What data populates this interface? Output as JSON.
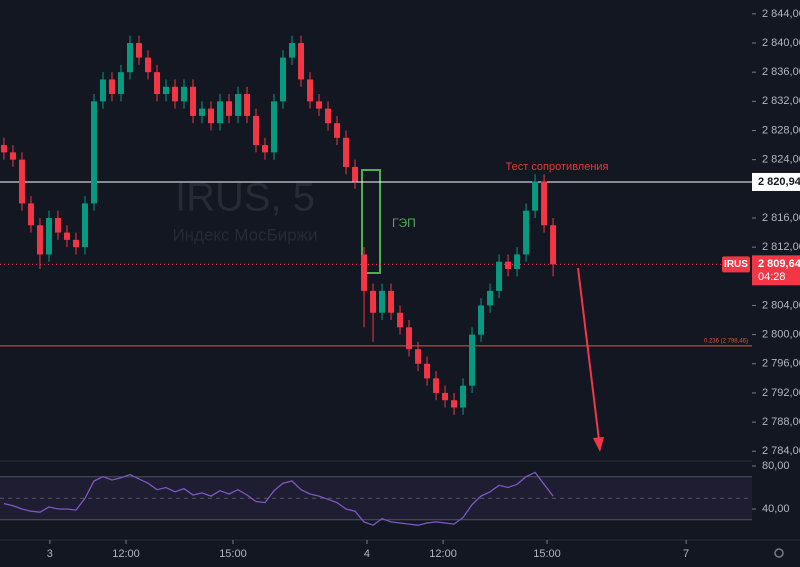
{
  "chart_data": [
    {
      "type": "candlestick",
      "symbol_watermark": "IRUS, 5",
      "symbol_name": "Индекс МосБиржи",
      "symbol": "IRUS",
      "annotations": [
        "ГЭП",
        "Тест сопротивления"
      ],
      "up_color": "#089981",
      "down_color": "#f23645",
      "open": [
        2826,
        2825,
        2824,
        2818,
        2815,
        2811,
        2816,
        2814,
        2813,
        2812,
        2818,
        2832,
        2835,
        2833,
        2836,
        2840,
        2838,
        2836,
        2833,
        2834,
        2832,
        2834,
        2830,
        2831,
        2829,
        2832,
        2830,
        2833,
        2830,
        2826,
        2825,
        2832,
        2838,
        2840,
        2835,
        2832,
        2831,
        2829,
        2827,
        2823,
        2811,
        2806,
        2803,
        2806,
        2803,
        2801,
        2798,
        2796,
        2794,
        2792,
        2791,
        2790,
        2793,
        2800,
        2804,
        2806,
        2810,
        2809,
        2811,
        2817,
        2821,
        2815
      ],
      "high": [
        2827,
        2826,
        2825,
        2819,
        2816,
        2817,
        2817,
        2815,
        2814,
        2819,
        2833,
        2836,
        2836,
        2837,
        2841,
        2841,
        2839,
        2837,
        2835,
        2835,
        2835,
        2835,
        2832,
        2832,
        2833,
        2833,
        2834,
        2834,
        2831,
        2827,
        2833,
        2839,
        2841,
        2841,
        2836,
        2833,
        2832,
        2830,
        2828,
        2824,
        2812,
        2807,
        2807,
        2807,
        2804,
        2802,
        2799,
        2797,
        2795,
        2793,
        2792,
        2794,
        2801,
        2805,
        2807,
        2811,
        2811,
        2812,
        2818,
        2822,
        2822,
        2816
      ],
      "low": [
        2824,
        2823,
        2817,
        2814,
        2809,
        2810,
        2813,
        2812,
        2811,
        2811,
        2817,
        2831,
        2832,
        2832,
        2835,
        2837,
        2835,
        2832,
        2832,
        2831,
        2831,
        2829,
        2829,
        2828,
        2828,
        2829,
        2829,
        2829,
        2825,
        2824,
        2824,
        2831,
        2837,
        2834,
        2831,
        2830,
        2828,
        2826,
        2822,
        2820,
        2801,
        2799,
        2802,
        2802,
        2800,
        2797,
        2795,
        2793,
        2791,
        2790,
        2789,
        2789,
        2792,
        2799,
        2803,
        2805,
        2808,
        2808,
        2810,
        2816,
        2814,
        2808
      ],
      "close": [
        2825,
        2824,
        2818,
        2815,
        2811,
        2816,
        2814,
        2813,
        2812,
        2818,
        2832,
        2835,
        2833,
        2836,
        2840,
        2838,
        2836,
        2833,
        2834,
        2832,
        2834,
        2830,
        2831,
        2829,
        2832,
        2830,
        2833,
        2830,
        2826,
        2825,
        2832,
        2838,
        2840,
        2835,
        2832,
        2831,
        2829,
        2827,
        2823,
        2821,
        2806,
        2803,
        2806,
        2803,
        2801,
        2798,
        2796,
        2794,
        2792,
        2791,
        2790,
        2793,
        2800,
        2804,
        2806,
        2810,
        2809,
        2811,
        2817,
        2821,
        2815,
        2809.64
      ],
      "xlim": [
        -0.44,
        83.1
      ],
      "xticks": [
        {
          "value": 5.1,
          "label": "3"
        },
        {
          "value": 13.56,
          "label": "12:00"
        },
        {
          "value": 25.44,
          "label": "15:00"
        },
        {
          "value": 40.33,
          "label": "4"
        },
        {
          "value": 48.78,
          "label": "12:00"
        },
        {
          "value": 60.33,
          "label": "15:00"
        },
        {
          "value": 75.78,
          "label": "7"
        }
      ],
      "ylim": [
        2782.8,
        2845.9
      ],
      "yticks": [
        {
          "value": 2844,
          "label": "2 844,00"
        },
        {
          "value": 2840,
          "label": "2 840,00"
        },
        {
          "value": 2836,
          "label": "2 836,00"
        },
        {
          "value": 2832,
          "label": "2 832,00"
        },
        {
          "value": 2828,
          "label": "2 828,00"
        },
        {
          "value": 2824,
          "label": "2 824,00"
        },
        {
          "value": 2816,
          "label": "2 816,00"
        },
        {
          "value": 2812,
          "label": "2 812,00"
        },
        {
          "value": 2804,
          "label": "2 804,00"
        },
        {
          "value": 2800,
          "label": "2 800,00"
        },
        {
          "value": 2796,
          "label": "2 796,00"
        },
        {
          "value": 2792,
          "label": "2 792,00"
        },
        {
          "value": 2788,
          "label": "2 788,00"
        },
        {
          "value": 2784,
          "label": "2 784,00"
        }
      ],
      "resistance_level": {
        "value": 2820.94,
        "label": "2 820,94"
      },
      "last_price": {
        "value": 2809.64,
        "label": "2 809,64"
      },
      "countdown": "04:28",
      "fib_level": {
        "value": 2798.46,
        "label": "0.236 (2 798,46)"
      }
    },
    {
      "type": "line",
      "color": "#7e57c2",
      "values": [
        45,
        43,
        40,
        38,
        37,
        42,
        40,
        40,
        39,
        50,
        66,
        70,
        67,
        69,
        72,
        68,
        64,
        58,
        60,
        56,
        59,
        53,
        55,
        52,
        57,
        54,
        58,
        53,
        47,
        46,
        57,
        64,
        66,
        58,
        54,
        52,
        49,
        46,
        40,
        38,
        28,
        25,
        31,
        28,
        27,
        26,
        25,
        27,
        28,
        27,
        26,
        32,
        44,
        52,
        56,
        62,
        60,
        63,
        70,
        74,
        63,
        52
      ],
      "xlim": [
        -0.44,
        83.1
      ],
      "ylim": [
        20.5,
        83.7
      ],
      "yticks": [
        {
          "value": 80,
          "label": "80,00"
        },
        {
          "value": 40,
          "label": "40,00"
        }
      ],
      "bands": [
        70,
        50,
        30
      ]
    }
  ]
}
